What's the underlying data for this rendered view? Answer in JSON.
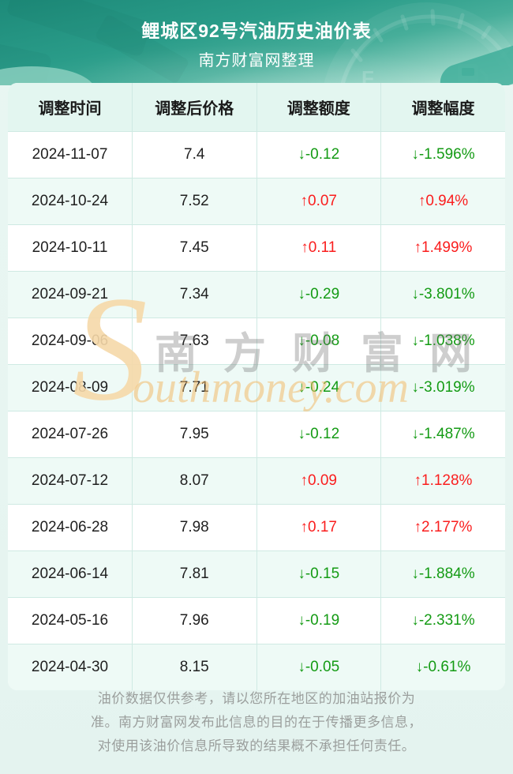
{
  "header": {
    "title": "鲤城区92号汽油历史油价表",
    "subtitle": "南方财富网整理"
  },
  "table": {
    "columns": [
      "调整时间",
      "调整后价格",
      "调整额度",
      "调整幅度"
    ],
    "arrows": {
      "up": "↑",
      "down": "↓"
    },
    "rows": [
      {
        "date": "2024-11-07",
        "price": "7.4",
        "amount": "-0.12",
        "percent": "-1.596%",
        "direction": "down"
      },
      {
        "date": "2024-10-24",
        "price": "7.52",
        "amount": "0.07",
        "percent": "0.94%",
        "direction": "up"
      },
      {
        "date": "2024-10-11",
        "price": "7.45",
        "amount": "0.11",
        "percent": "1.499%",
        "direction": "up"
      },
      {
        "date": "2024-09-21",
        "price": "7.34",
        "amount": "-0.29",
        "percent": "-3.801%",
        "direction": "down"
      },
      {
        "date": "2024-09-06",
        "price": "7.63",
        "amount": "-0.08",
        "percent": "-1.038%",
        "direction": "down"
      },
      {
        "date": "2024-08-09",
        "price": "7.71",
        "amount": "-0.24",
        "percent": "-3.019%",
        "direction": "down"
      },
      {
        "date": "2024-07-26",
        "price": "7.95",
        "amount": "-0.12",
        "percent": "-1.487%",
        "direction": "down"
      },
      {
        "date": "2024-07-12",
        "price": "8.07",
        "amount": "0.09",
        "percent": "1.128%",
        "direction": "up"
      },
      {
        "date": "2024-06-28",
        "price": "7.98",
        "amount": "0.17",
        "percent": "2.177%",
        "direction": "up"
      },
      {
        "date": "2024-06-14",
        "price": "7.81",
        "amount": "-0.15",
        "percent": "-1.884%",
        "direction": "down"
      },
      {
        "date": "2024-05-16",
        "price": "7.96",
        "amount": "-0.19",
        "percent": "-2.331%",
        "direction": "down"
      },
      {
        "date": "2024-04-30",
        "price": "8.15",
        "amount": "-0.05",
        "percent": "-0.61%",
        "direction": "down"
      }
    ]
  },
  "watermark": {
    "s_glyph": "S",
    "cn": "南方财富网",
    "en": "outhmoney.com"
  },
  "footer": {
    "lines": [
      "油价数据仅供参考，请以您所在地区的加油站报价为",
      "准。南方财富网发布此信息的目的在于传播更多信息，",
      "对使用该油价信息所导致的结果概不承担任何责任。"
    ]
  },
  "colors": {
    "header_teal": "#2a9c89",
    "up_red": "#fa1e1e",
    "down_green": "#149b14",
    "watermark_orange": "#f2ba6a",
    "table_header_bg": "#e3f6f0",
    "stripe_bg": "#eefaf6"
  }
}
